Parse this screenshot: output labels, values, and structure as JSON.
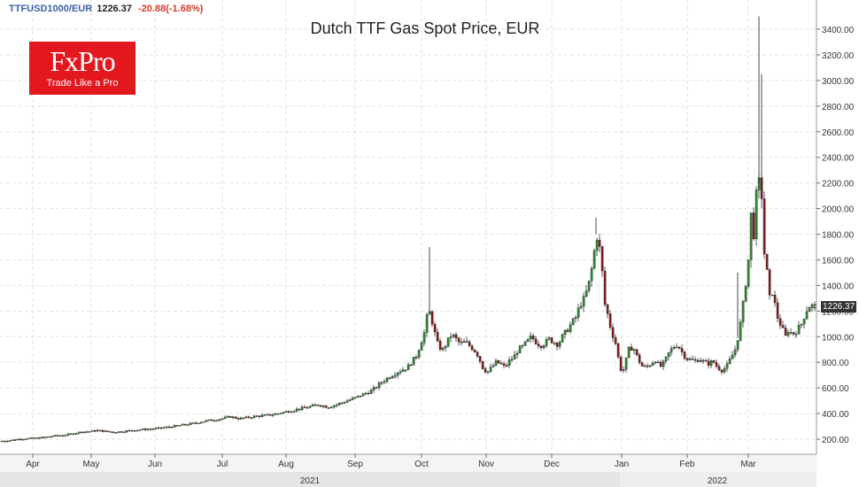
{
  "header": {
    "symbol": "TTFUSD1000/EUR",
    "last": "1226.37",
    "change": "-20.88(-1.68%)"
  },
  "logo": {
    "brand": "FxPro",
    "tagline": "Trade Like a Pro"
  },
  "price_tag": "1226.37",
  "chart_data": {
    "type": "candlestick",
    "title": "Dutch TTF Gas Spot Price, EUR",
    "xlabel": "",
    "ylabel": "",
    "ylim": [
      100,
      3500
    ],
    "y_ticks": [
      "200.00",
      "400.00",
      "600.00",
      "800.00",
      "1000.00",
      "1200.00",
      "1400.00",
      "1600.00",
      "1800.00",
      "2000.00",
      "2200.00",
      "2400.00",
      "2600.00",
      "2800.00",
      "3000.00",
      "3200.00",
      "3400.00"
    ],
    "x_month_labels": [
      "Apr",
      "May",
      "Jun",
      "Jul",
      "Aug",
      "Sep",
      "Oct",
      "Nov",
      "Dec",
      "Jan",
      "Feb",
      "Mar"
    ],
    "x_year_labels": [
      "2021",
      "2022"
    ],
    "grid": true,
    "up_color": "#2e8b2e",
    "down_color": "#8b1a1a",
    "close_path": [
      [
        0,
        185
      ],
      [
        10,
        190
      ],
      [
        20,
        200
      ],
      [
        30,
        205
      ],
      [
        40,
        208
      ],
      [
        50,
        215
      ],
      [
        60,
        225
      ],
      [
        70,
        230
      ],
      [
        80,
        240
      ],
      [
        90,
        255
      ],
      [
        100,
        260
      ],
      [
        110,
        268
      ],
      [
        120,
        260
      ],
      [
        130,
        255
      ],
      [
        140,
        262
      ],
      [
        150,
        270
      ],
      [
        160,
        275
      ],
      [
        170,
        280
      ],
      [
        180,
        285
      ],
      [
        190,
        295
      ],
      [
        200,
        305
      ],
      [
        210,
        315
      ],
      [
        220,
        325
      ],
      [
        230,
        340
      ],
      [
        240,
        350
      ],
      [
        250,
        360
      ],
      [
        260,
        375
      ],
      [
        270,
        360
      ],
      [
        280,
        370
      ],
      [
        290,
        380
      ],
      [
        300,
        385
      ],
      [
        310,
        395
      ],
      [
        320,
        410
      ],
      [
        330,
        425
      ],
      [
        340,
        440
      ],
      [
        350,
        455
      ],
      [
        360,
        470
      ],
      [
        370,
        450
      ],
      [
        380,
        470
      ],
      [
        390,
        495
      ],
      [
        400,
        520
      ],
      [
        410,
        550
      ],
      [
        420,
        580
      ],
      [
        430,
        640
      ],
      [
        440,
        690
      ],
      [
        450,
        730
      ],
      [
        460,
        760
      ],
      [
        470,
        850
      ],
      [
        475,
        950
      ],
      [
        480,
        1050
      ],
      [
        483,
        1200
      ],
      [
        486,
        1180
      ],
      [
        490,
        1050
      ],
      [
        495,
        920
      ],
      [
        500,
        900
      ],
      [
        505,
        960
      ],
      [
        510,
        1020
      ],
      [
        515,
        980
      ],
      [
        520,
        940
      ],
      [
        525,
        960
      ],
      [
        530,
        930
      ],
      [
        535,
        900
      ],
      [
        540,
        850
      ],
      [
        545,
        760
      ],
      [
        550,
        720
      ],
      [
        555,
        760
      ],
      [
        560,
        800
      ],
      [
        565,
        790
      ],
      [
        570,
        760
      ],
      [
        575,
        810
      ],
      [
        580,
        840
      ],
      [
        585,
        900
      ],
      [
        590,
        920
      ],
      [
        595,
        960
      ],
      [
        600,
        1000
      ],
      [
        605,
        960
      ],
      [
        610,
        930
      ],
      [
        615,
        950
      ],
      [
        620,
        980
      ],
      [
        625,
        960
      ],
      [
        630,
        940
      ],
      [
        635,
        1000
      ],
      [
        640,
        1050
      ],
      [
        645,
        1100
      ],
      [
        650,
        1150
      ],
      [
        655,
        1250
      ],
      [
        660,
        1300
      ],
      [
        665,
        1420
      ],
      [
        670,
        1600
      ],
      [
        673,
        1800
      ],
      [
        676,
        1750
      ],
      [
        680,
        1500
      ],
      [
        683,
        1250
      ],
      [
        687,
        1150
      ],
      [
        690,
        1050
      ],
      [
        695,
        950
      ],
      [
        700,
        760
      ],
      [
        703,
        720
      ],
      [
        707,
        820
      ],
      [
        710,
        900
      ],
      [
        715,
        920
      ],
      [
        720,
        830
      ],
      [
        725,
        770
      ],
      [
        730,
        760
      ],
      [
        735,
        790
      ],
      [
        740,
        820
      ],
      [
        745,
        760
      ],
      [
        750,
        800
      ],
      [
        755,
        870
      ],
      [
        760,
        920
      ],
      [
        765,
        940
      ],
      [
        770,
        880
      ],
      [
        775,
        830
      ],
      [
        780,
        820
      ],
      [
        785,
        810
      ],
      [
        790,
        830
      ],
      [
        795,
        800
      ],
      [
        800,
        790
      ],
      [
        805,
        810
      ],
      [
        810,
        760
      ],
      [
        815,
        740
      ],
      [
        820,
        760
      ],
      [
        825,
        830
      ],
      [
        830,
        900
      ],
      [
        835,
        1050
      ],
      [
        840,
        1300
      ],
      [
        845,
        1600
      ],
      [
        848,
        1950
      ],
      [
        851,
        1800
      ],
      [
        854,
        2100
      ],
      [
        857,
        2200
      ],
      [
        860,
        2100
      ],
      [
        863,
        1650
      ],
      [
        866,
        1500
      ],
      [
        869,
        1300
      ],
      [
        872,
        1350
      ],
      [
        875,
        1250
      ],
      [
        878,
        1150
      ],
      [
        881,
        1100
      ],
      [
        884,
        1050
      ],
      [
        887,
        1000
      ],
      [
        890,
        1050
      ],
      [
        895,
        1020
      ],
      [
        900,
        1050
      ],
      [
        905,
        1100
      ],
      [
        910,
        1200
      ],
      [
        915,
        1250
      ],
      [
        920,
        1226
      ]
    ],
    "spikes": [
      [
        485,
        1700
      ],
      [
        673,
        1930
      ],
      [
        833,
        1500
      ],
      [
        857,
        3500
      ],
      [
        860,
        3050
      ]
    ]
  }
}
